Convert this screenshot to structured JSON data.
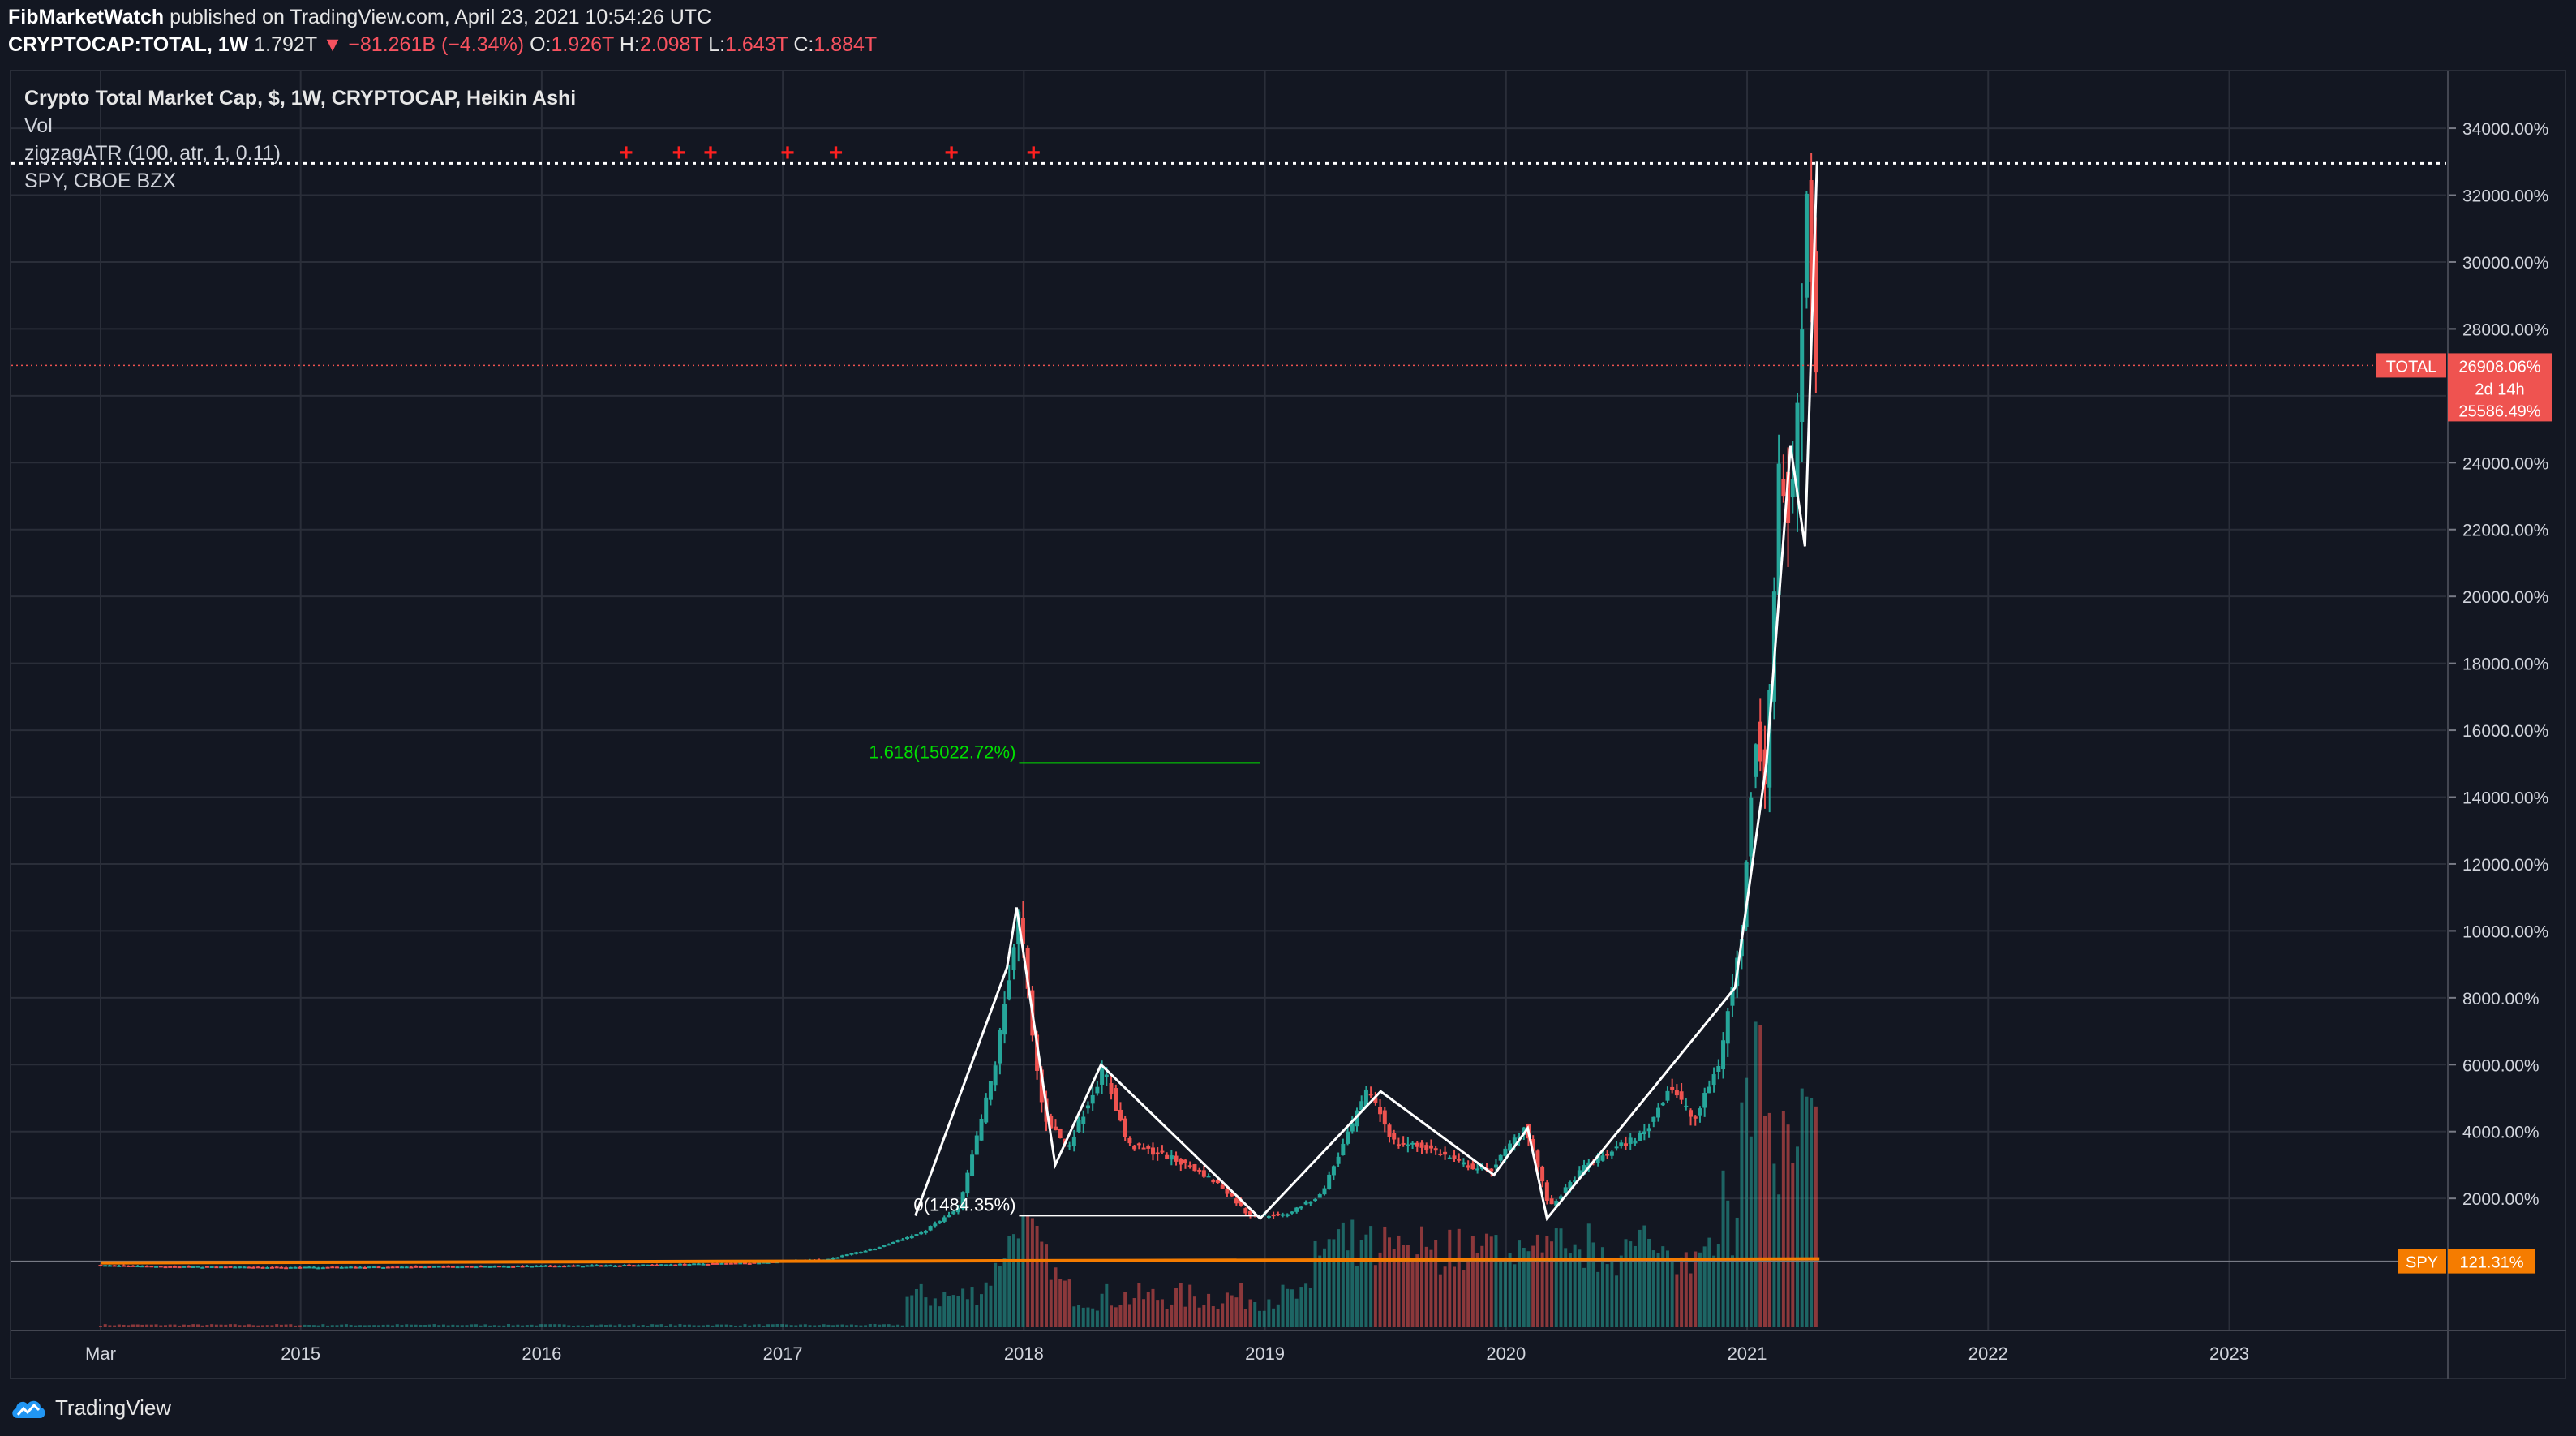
{
  "header": {
    "publisher": "FibMarketWatch",
    "published_text": " published on TradingView.com, April 23, 2021 10:54:26 UTC"
  },
  "symbol_bar": {
    "symbol": "CRYPTOCAP:TOTAL, 1W",
    "last": "1.792T",
    "change": "▼ −81.261B (−4.34%)",
    "o_label": "O:",
    "o_value": "1.926T",
    "h_label": "H:",
    "h_value": "2.098T",
    "l_label": "L:",
    "l_value": "1.643T",
    "c_label": "C:",
    "c_value": "1.884T"
  },
  "legend": {
    "title": "Crypto Total Market Cap, $, 1W, CRYPTOCAP, Heikin Ashi",
    "items": [
      "Vol",
      "zigzagATR (100, atr, 1, 0.11)",
      "SPY, CBOE BZX"
    ]
  },
  "footer": {
    "brand": "TradingView"
  },
  "colors": {
    "background": "#131722",
    "grid": "#2a2e39",
    "up": "#26a69a",
    "down": "#ef5350",
    "zigzag": "#ffffff",
    "spy": "#f57c00",
    "fib": "#00e000",
    "total_tag": "#ef5350"
  },
  "chart_data": {
    "type": "candlestick",
    "y_axis": {
      "unit": "%",
      "ticks": [
        "34000.00%",
        "32000.00%",
        "30000.00%",
        "28000.00%",
        "26000.00%",
        "24000.00%",
        "22000.00%",
        "20000.00%",
        "18000.00%",
        "16000.00%",
        "14000.00%",
        "12000.00%",
        "10000.00%",
        "8000.00%",
        "6000.00%",
        "4000.00%",
        "2000.00%"
      ],
      "tick_values": [
        34000,
        32000,
        30000,
        28000,
        26000,
        24000,
        22000,
        20000,
        18000,
        16000,
        14000,
        12000,
        10000,
        8000,
        6000,
        4000,
        2000
      ],
      "range": [
        -1950,
        35700
      ]
    },
    "x_axis": {
      "ticks": [
        "Mar",
        "2015",
        "2016",
        "2017",
        "2018",
        "2019",
        "2020",
        "2021",
        "2022",
        "2023"
      ],
      "tick_values": [
        2014.17,
        2015.0,
        2016.0,
        2017.0,
        2018.0,
        2019.0,
        2020.0,
        2021.0,
        2022.0,
        2023.0
      ],
      "range": [
        2013.8,
        2023.9
      ]
    },
    "price_series": {
      "name": "TOTAL",
      "points": [
        [
          2014.17,
          0
        ],
        [
          2014.6,
          -40
        ],
        [
          2015.0,
          -60
        ],
        [
          2015.5,
          -40
        ],
        [
          2016.0,
          -20
        ],
        [
          2016.5,
          20
        ],
        [
          2016.9,
          80
        ],
        [
          2017.2,
          180
        ],
        [
          2017.4,
          500
        ],
        [
          2017.6,
          1000
        ],
        [
          2017.75,
          1700
        ],
        [
          2017.9,
          6000
        ],
        [
          2018.0,
          10600
        ],
        [
          2018.05,
          7000
        ],
        [
          2018.1,
          4500
        ],
        [
          2018.2,
          3500
        ],
        [
          2018.35,
          5900
        ],
        [
          2018.45,
          3600
        ],
        [
          2018.6,
          3300
        ],
        [
          2018.75,
          2800
        ],
        [
          2018.85,
          2300
        ],
        [
          2018.95,
          1500
        ],
        [
          2019.1,
          1500
        ],
        [
          2019.25,
          2100
        ],
        [
          2019.45,
          5300
        ],
        [
          2019.55,
          3700
        ],
        [
          2019.7,
          3500
        ],
        [
          2019.85,
          3000
        ],
        [
          2019.95,
          2800
        ],
        [
          2020.1,
          4200
        ],
        [
          2020.2,
          1700
        ],
        [
          2020.35,
          3000
        ],
        [
          2020.5,
          3600
        ],
        [
          2020.6,
          4000
        ],
        [
          2020.7,
          5400
        ],
        [
          2020.8,
          4300
        ],
        [
          2020.9,
          6000
        ],
        [
          2020.95,
          8000
        ],
        [
          2021.0,
          10000
        ],
        [
          2021.05,
          16000
        ],
        [
          2021.1,
          14500
        ],
        [
          2021.15,
          24000
        ],
        [
          2021.2,
          22000
        ],
        [
          2021.25,
          29000
        ],
        [
          2021.27,
          32800
        ],
        [
          2021.3,
          26908
        ]
      ]
    },
    "zigzag": {
      "points": [
        [
          2017.55,
          1484
        ],
        [
          2017.93,
          8900
        ],
        [
          2017.97,
          10700
        ],
        [
          2018.13,
          3000
        ],
        [
          2018.32,
          6000
        ],
        [
          2018.98,
          1400
        ],
        [
          2019.48,
          5200
        ],
        [
          2019.95,
          2700
        ],
        [
          2020.09,
          4100
        ],
        [
          2020.17,
          1400
        ],
        [
          2020.95,
          8300
        ],
        [
          2021.08,
          15000
        ],
        [
          2021.18,
          24500
        ],
        [
          2021.24,
          21500
        ],
        [
          2021.29,
          33000
        ]
      ]
    },
    "volume": {
      "series_peak_years": [
        2018.0,
        2021.05
      ],
      "max_label": "Vol"
    },
    "spy": {
      "name": "SPY",
      "last_label": "121.31%",
      "level": 121.31
    },
    "annotations": {
      "fib_0": {
        "label": "0(1484.35%)",
        "value": 1484.35,
        "x_start": 2017.98,
        "x_end": 2018.98
      },
      "fib_1618": {
        "label": "1.618(15022.72%)",
        "value": 15022.72,
        "x_start": 2017.98,
        "x_end": 2018.98
      },
      "ath_line": {
        "value": 32950
      },
      "total_tag": {
        "name": "TOTAL",
        "value_label": "26908.06%",
        "countdown": "2d 14h",
        "low_label": "25586.49%",
        "value": 26908.06,
        "low": 25586.49
      },
      "pivot_marks": [
        2016.35,
        2016.57,
        2016.7,
        2017.02,
        2017.22,
        2017.7,
        2018.04
      ]
    },
    "grid": true
  }
}
